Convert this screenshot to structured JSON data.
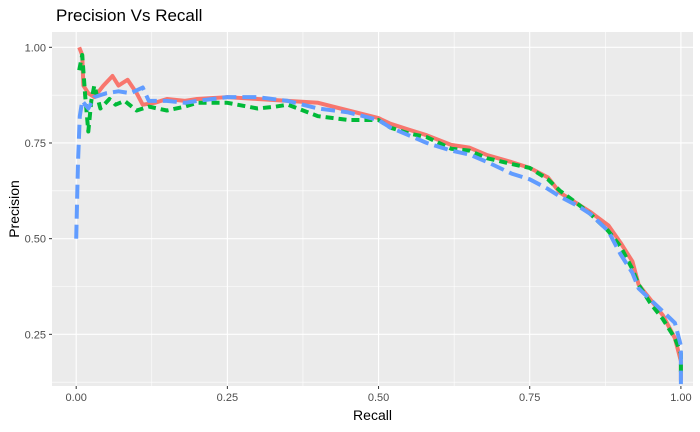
{
  "chart_data": {
    "type": "line",
    "title": "Precision Vs Recall",
    "xlabel": "Recall",
    "ylabel": "Precision",
    "xlim": [
      -0.04,
      1.02
    ],
    "ylim": [
      0.115,
      1.04
    ],
    "x_ticks": [
      0.0,
      0.25,
      0.5,
      0.75,
      1.0
    ],
    "x_tick_labels": [
      "0.00",
      "0.25",
      "0.50",
      "0.75",
      "1.00"
    ],
    "y_ticks": [
      0.25,
      0.5,
      0.75,
      1.0
    ],
    "y_tick_labels": [
      "0.25",
      "0.50",
      "0.75",
      "1.00"
    ],
    "grid": true,
    "panel_background": "#ebebeb",
    "grid_color": "#ffffff",
    "series": [
      {
        "color": "#f8766d",
        "dash": "solid",
        "points": [
          [
            0.005,
            1.0
          ],
          [
            0.01,
            0.98
          ],
          [
            0.012,
            0.9
          ],
          [
            0.02,
            0.88
          ],
          [
            0.03,
            0.87
          ],
          [
            0.045,
            0.9
          ],
          [
            0.06,
            0.925
          ],
          [
            0.07,
            0.9
          ],
          [
            0.085,
            0.915
          ],
          [
            0.1,
            0.88
          ],
          [
            0.11,
            0.85
          ],
          [
            0.13,
            0.855
          ],
          [
            0.15,
            0.865
          ],
          [
            0.18,
            0.86
          ],
          [
            0.2,
            0.865
          ],
          [
            0.25,
            0.87
          ],
          [
            0.3,
            0.865
          ],
          [
            0.35,
            0.86
          ],
          [
            0.4,
            0.855
          ],
          [
            0.45,
            0.835
          ],
          [
            0.5,
            0.815
          ],
          [
            0.52,
            0.8
          ],
          [
            0.55,
            0.785
          ],
          [
            0.58,
            0.77
          ],
          [
            0.62,
            0.745
          ],
          [
            0.65,
            0.738
          ],
          [
            0.68,
            0.718
          ],
          [
            0.72,
            0.7
          ],
          [
            0.75,
            0.685
          ],
          [
            0.78,
            0.66
          ],
          [
            0.8,
            0.62
          ],
          [
            0.83,
            0.59
          ],
          [
            0.85,
            0.57
          ],
          [
            0.88,
            0.535
          ],
          [
            0.9,
            0.49
          ],
          [
            0.92,
            0.44
          ],
          [
            0.93,
            0.38
          ],
          [
            0.95,
            0.34
          ],
          [
            0.97,
            0.3
          ],
          [
            0.99,
            0.24
          ],
          [
            1.0,
            0.18
          ],
          [
            1.0,
            0.13
          ]
        ]
      },
      {
        "color": "#00ba38",
        "dash": "8,5",
        "points": [
          [
            0.005,
            0.94
          ],
          [
            0.01,
            0.98
          ],
          [
            0.015,
            0.87
          ],
          [
            0.02,
            0.78
          ],
          [
            0.025,
            0.86
          ],
          [
            0.03,
            0.9
          ],
          [
            0.04,
            0.84
          ],
          [
            0.055,
            0.865
          ],
          [
            0.065,
            0.85
          ],
          [
            0.08,
            0.86
          ],
          [
            0.1,
            0.835
          ],
          [
            0.12,
            0.845
          ],
          [
            0.15,
            0.835
          ],
          [
            0.18,
            0.845
          ],
          [
            0.2,
            0.855
          ],
          [
            0.25,
            0.855
          ],
          [
            0.3,
            0.84
          ],
          [
            0.33,
            0.845
          ],
          [
            0.35,
            0.85
          ],
          [
            0.4,
            0.82
          ],
          [
            0.45,
            0.81
          ],
          [
            0.5,
            0.81
          ],
          [
            0.52,
            0.79
          ],
          [
            0.55,
            0.775
          ],
          [
            0.58,
            0.765
          ],
          [
            0.62,
            0.735
          ],
          [
            0.65,
            0.73
          ],
          [
            0.68,
            0.71
          ],
          [
            0.72,
            0.695
          ],
          [
            0.75,
            0.685
          ],
          [
            0.78,
            0.655
          ],
          [
            0.8,
            0.625
          ],
          [
            0.83,
            0.59
          ],
          [
            0.85,
            0.565
          ],
          [
            0.88,
            0.52
          ],
          [
            0.9,
            0.48
          ],
          [
            0.92,
            0.42
          ],
          [
            0.93,
            0.38
          ],
          [
            0.95,
            0.33
          ],
          [
            0.97,
            0.29
          ],
          [
            0.99,
            0.24
          ],
          [
            1.0,
            0.2
          ],
          [
            1.0,
            0.14
          ]
        ]
      },
      {
        "color": "#619cff",
        "dash": "14,6",
        "points": [
          [
            0.0,
            0.5
          ],
          [
            0.003,
            0.7
          ],
          [
            0.006,
            0.82
          ],
          [
            0.01,
            0.86
          ],
          [
            0.02,
            0.84
          ],
          [
            0.03,
            0.87
          ],
          [
            0.05,
            0.88
          ],
          [
            0.07,
            0.885
          ],
          [
            0.09,
            0.88
          ],
          [
            0.11,
            0.895
          ],
          [
            0.12,
            0.86
          ],
          [
            0.15,
            0.86
          ],
          [
            0.18,
            0.855
          ],
          [
            0.2,
            0.86
          ],
          [
            0.25,
            0.87
          ],
          [
            0.3,
            0.87
          ],
          [
            0.35,
            0.86
          ],
          [
            0.4,
            0.84
          ],
          [
            0.45,
            0.83
          ],
          [
            0.5,
            0.81
          ],
          [
            0.52,
            0.79
          ],
          [
            0.55,
            0.77
          ],
          [
            0.58,
            0.75
          ],
          [
            0.62,
            0.73
          ],
          [
            0.65,
            0.72
          ],
          [
            0.68,
            0.7
          ],
          [
            0.72,
            0.67
          ],
          [
            0.75,
            0.655
          ],
          [
            0.78,
            0.63
          ],
          [
            0.8,
            0.61
          ],
          [
            0.83,
            0.585
          ],
          [
            0.85,
            0.565
          ],
          [
            0.88,
            0.52
          ],
          [
            0.9,
            0.46
          ],
          [
            0.92,
            0.41
          ],
          [
            0.93,
            0.37
          ],
          [
            0.95,
            0.34
          ],
          [
            0.97,
            0.31
          ],
          [
            0.99,
            0.28
          ],
          [
            1.0,
            0.22
          ],
          [
            1.0,
            0.12
          ]
        ]
      }
    ]
  }
}
